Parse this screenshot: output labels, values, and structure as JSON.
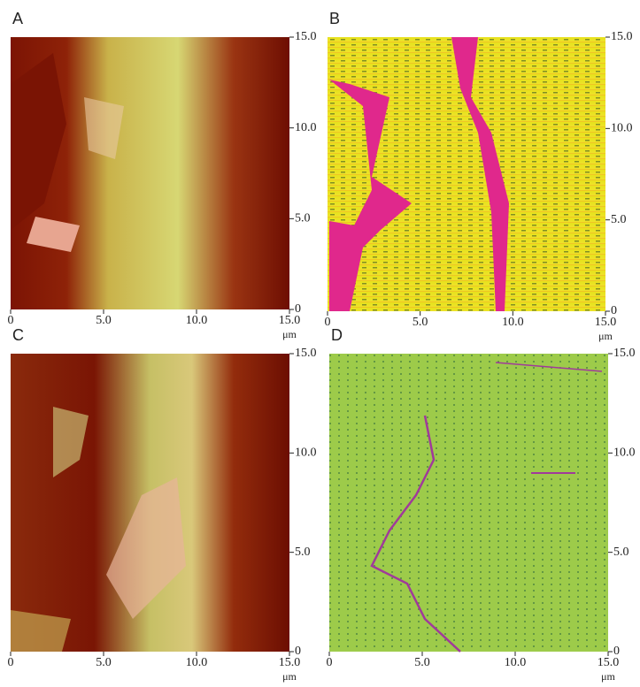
{
  "chart_data": [
    {
      "type": "image",
      "label": "A",
      "xlim": [
        0,
        15
      ],
      "ylim": [
        0,
        15
      ],
      "xticks": [
        0,
        {
          "value": 5,
          "label": "5.0"
        },
        {
          "value": 10,
          "label": "10.0"
        },
        {
          "value": 15,
          "label": "15.0"
        }
      ],
      "yticks": [
        0,
        {
          "value": 5,
          "label": "5.0"
        },
        {
          "value": 10,
          "label": "10.0"
        },
        {
          "value": 15,
          "label": "15.0"
        }
      ],
      "x_unit": "μm"
    },
    {
      "type": "image",
      "label": "B",
      "xlim": [
        0,
        15
      ],
      "ylim": [
        0,
        15
      ],
      "xticks": [
        0,
        {
          "value": 5,
          "label": "5.0"
        },
        {
          "value": 10,
          "label": "10.0"
        },
        {
          "value": 15,
          "label": "15.0"
        }
      ],
      "yticks": [
        0,
        {
          "value": 5,
          "label": "5.0"
        },
        {
          "value": 10,
          "label": "10.0"
        },
        {
          "value": 15,
          "label": "15.0"
        }
      ],
      "x_unit": "μm"
    },
    {
      "type": "image",
      "label": "C",
      "xlim": [
        0,
        15
      ],
      "ylim": [
        0,
        15
      ],
      "xticks": [
        0,
        {
          "value": 5,
          "label": "5.0"
        },
        {
          "value": 10,
          "label": "10.0"
        },
        {
          "value": 15,
          "label": "15.0"
        }
      ],
      "yticks": [
        0,
        {
          "value": 5,
          "label": "5.0"
        },
        {
          "value": 10,
          "label": "10.0"
        },
        {
          "value": 15,
          "label": "15.0"
        }
      ],
      "x_unit": "μm"
    },
    {
      "type": "image",
      "label": "D",
      "xlim": [
        0,
        15
      ],
      "ylim": [
        0,
        15
      ],
      "xticks": [
        0,
        {
          "value": 5,
          "label": "5.0"
        },
        {
          "value": 10,
          "label": "10.0"
        },
        {
          "value": 15,
          "label": "15.0"
        }
      ],
      "yticks": [
        0,
        {
          "value": 5,
          "label": "5.0"
        },
        {
          "value": 10,
          "label": "10.0"
        },
        {
          "value": 15,
          "label": "15.0"
        }
      ],
      "x_unit": "μm"
    }
  ]
}
